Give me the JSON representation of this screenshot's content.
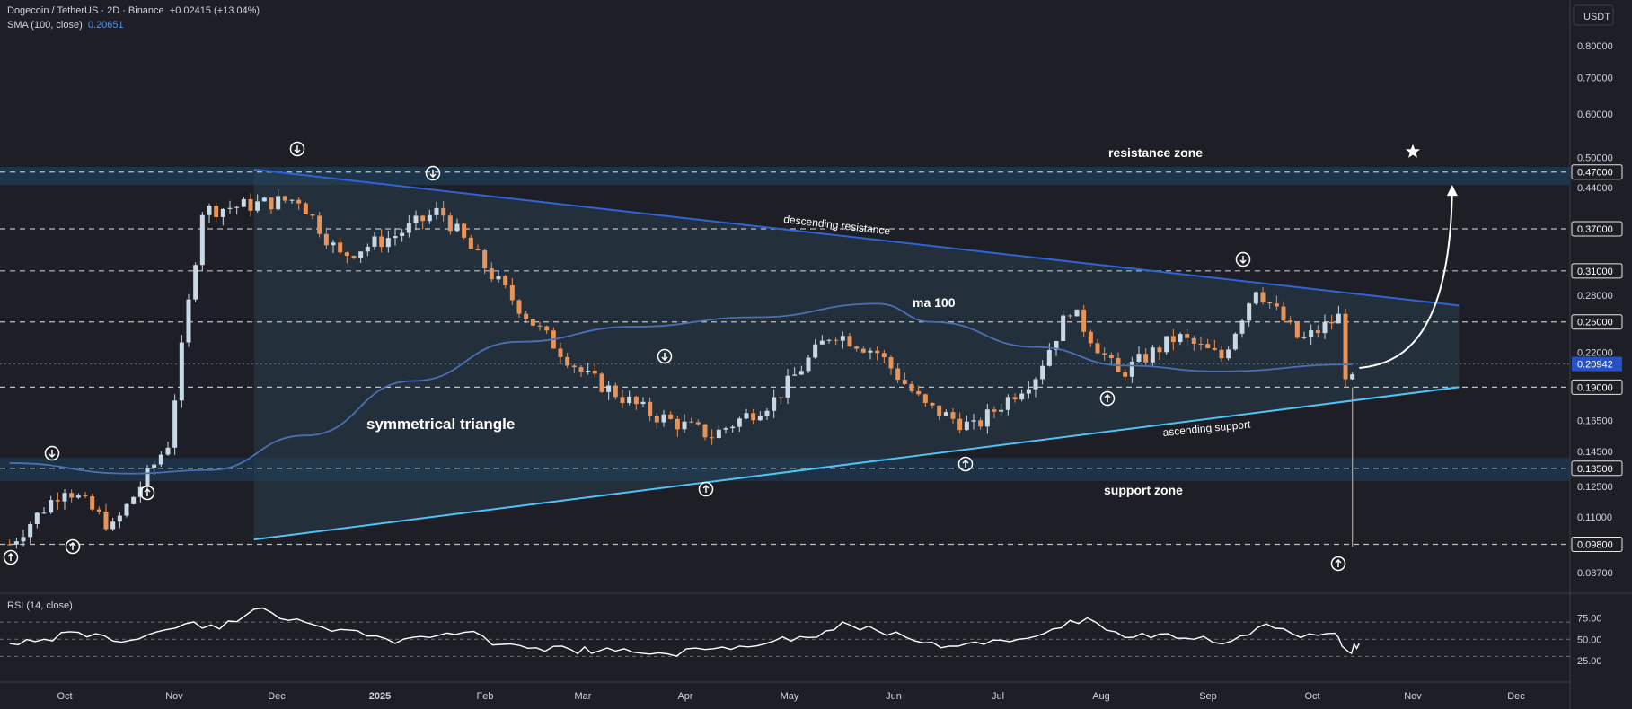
{
  "header": {
    "symbol": "Dogecoin / TetherUS · 2D · Binance",
    "change": "+0.02415 (+13.04%)",
    "sma_label": "SMA (100, close)",
    "sma_value": "0.20651",
    "rsi_label": "RSI (14, close)"
  },
  "currency": "USDT",
  "colors": {
    "background": "#1e1f26",
    "up": "#c8d8e4",
    "down": "#e8935a",
    "sma": "#4a6fb3",
    "resistance_line": "#2f63d6",
    "support_line": "#4fc3f7",
    "zone": "#1d3a52"
  },
  "annotations": {
    "resistance_zone": "resistance zone",
    "support_zone": "support zone",
    "descending_resistance": "descending resistance",
    "ascending_support": "ascending support",
    "ma100": "ma 100",
    "triangle": "symmetrical triangle"
  },
  "chart_data": [
    {
      "type": "candlestick",
      "title": "Dogecoin / TetherUS · 2D · Binance",
      "y_scale": "log",
      "y_ticks": [
        "0.80000",
        "0.70000",
        "0.60000",
        "0.50000",
        "0.47000",
        "0.44000",
        "0.37000",
        "0.31000",
        "0.28000",
        "0.25000",
        "0.22000",
        "0.20942",
        "0.19000",
        "0.16500",
        "0.14500",
        "0.13500",
        "0.12500",
        "0.11000",
        "0.09800",
        "0.08700"
      ],
      "price_levels": [
        0.47,
        0.37,
        0.31,
        0.25,
        0.19,
        0.135,
        0.098
      ],
      "current_price": 0.20942,
      "x_labels": [
        "Oct",
        "Nov",
        "Dec",
        "2025",
        "Feb",
        "Mar",
        "Apr",
        "May",
        "Jun",
        "Jul",
        "Aug",
        "Sep",
        "Oct",
        "Nov",
        "Dec"
      ],
      "ohlc_anchors": {
        "x": [
          "2024-09-15",
          "2024-10-01",
          "2024-10-15",
          "2024-10-31",
          "2024-11-10",
          "2024-11-25",
          "2024-12-08",
          "2024-12-20",
          "2025-01-05",
          "2025-01-18",
          "2025-02-01",
          "2025-02-15",
          "2025-03-01",
          "2025-03-20",
          "2025-04-07",
          "2025-04-25",
          "2025-05-12",
          "2025-05-25",
          "2025-06-08",
          "2025-06-22",
          "2025-07-10",
          "2025-07-20",
          "2025-08-03",
          "2025-08-20",
          "2025-09-02",
          "2025-09-12",
          "2025-09-25",
          "2025-10-06",
          "2025-10-09",
          "2025-10-11"
        ],
        "close": [
          0.098,
          0.125,
          0.105,
          0.15,
          0.4,
          0.41,
          0.42,
          0.33,
          0.36,
          0.4,
          0.31,
          0.245,
          0.2,
          0.17,
          0.155,
          0.18,
          0.24,
          0.22,
          0.175,
          0.16,
          0.2,
          0.265,
          0.2,
          0.235,
          0.215,
          0.29,
          0.23,
          0.255,
          0.18,
          0.209
        ]
      },
      "sma100": {
        "x": [
          "2024-09-15",
          "2024-10-20",
          "2024-11-12",
          "2024-12-10",
          "2025-01-10",
          "2025-02-10",
          "2025-03-15",
          "2025-04-20",
          "2025-05-25",
          "2025-06-10",
          "2025-07-10",
          "2025-08-05",
          "2025-09-01",
          "2025-10-10"
        ],
        "y": [
          0.138,
          0.132,
          0.134,
          0.155,
          0.195,
          0.23,
          0.245,
          0.255,
          0.27,
          0.25,
          0.225,
          0.208,
          0.203,
          0.209
        ]
      },
      "trendlines": {
        "descending_resistance": {
          "x": [
            "2024-11-25",
            "2025-11-10"
          ],
          "y": [
            0.475,
            0.268
          ]
        },
        "ascending_support": {
          "x": [
            "2024-11-25",
            "2025-11-10"
          ],
          "y": [
            0.1,
            0.19
          ]
        }
      },
      "zones": {
        "resistance": [
          0.445,
          0.48
        ],
        "support": [
          0.128,
          0.141
        ]
      }
    },
    {
      "type": "line",
      "title": "RSI (14, close)",
      "y_ticks": [
        "75.00",
        "50.00",
        "25.00"
      ],
      "levels": [
        70,
        50,
        30
      ],
      "x": [
        "2024-09-15",
        "2024-09-25",
        "2024-10-05",
        "2024-10-15",
        "2024-10-25",
        "2024-11-05",
        "2024-11-15",
        "2024-11-25",
        "2024-12-05",
        "2024-12-15",
        "2024-12-25",
        "2025-01-05",
        "2025-01-15",
        "2025-01-25",
        "2025-02-05",
        "2025-02-15",
        "2025-02-25",
        "2025-03-05",
        "2025-03-15",
        "2025-03-25",
        "2025-04-05",
        "2025-04-15",
        "2025-04-25",
        "2025-05-05",
        "2025-05-15",
        "2025-05-25",
        "2025-06-05",
        "2025-06-15",
        "2025-06-25",
        "2025-07-05",
        "2025-07-15",
        "2025-07-25",
        "2025-08-05",
        "2025-08-15",
        "2025-08-25",
        "2025-09-05",
        "2025-09-15",
        "2025-09-25",
        "2025-10-05",
        "2025-10-09",
        "2025-10-12"
      ],
      "y": [
        45,
        50,
        58,
        48,
        55,
        68,
        62,
        85,
        72,
        64,
        60,
        45,
        52,
        58,
        44,
        40,
        38,
        36,
        35,
        33,
        38,
        42,
        48,
        52,
        70,
        60,
        48,
        42,
        44,
        50,
        62,
        75,
        52,
        56,
        50,
        48,
        68,
        52,
        57,
        35,
        45
      ]
    }
  ]
}
